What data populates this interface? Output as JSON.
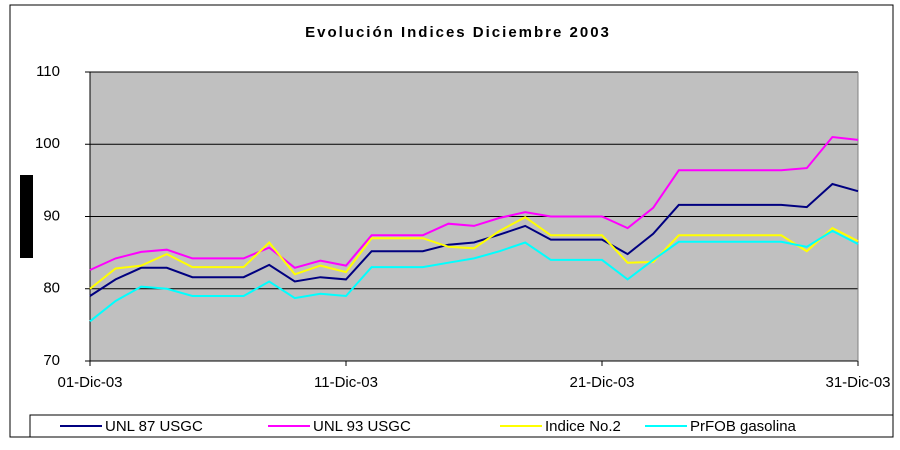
{
  "chart_data": {
    "type": "line",
    "title": "Evolución Indices Diciembre 2003",
    "categories": [
      "01-Dic-03",
      null,
      null,
      null,
      null,
      null,
      null,
      null,
      null,
      null,
      "11-Dic-03",
      null,
      null,
      null,
      null,
      null,
      null,
      null,
      null,
      null,
      "21-Dic-03",
      null,
      null,
      null,
      null,
      null,
      null,
      null,
      null,
      null,
      "31-Dic-03"
    ],
    "ylim": [
      70,
      110
    ],
    "yticks": [
      70,
      80,
      90,
      100,
      110
    ],
    "grid": true,
    "legend": "bottom",
    "series": [
      {
        "name": "UNL 87 USGC",
        "color": "#000080",
        "values": [
          79,
          81.3,
          82.9,
          82.9,
          81.6,
          81.6,
          81.6,
          83.3,
          81,
          81.6,
          81.3,
          85.2,
          85.2,
          85.2,
          86.1,
          86.4,
          87.5,
          88.7,
          86.8,
          86.8,
          86.8,
          84.8,
          87.6,
          91.6,
          91.6,
          91.6,
          91.6,
          91.6,
          91.3,
          94.5,
          93.5
        ]
      },
      {
        "name": "UNL 93 USGC",
        "color": "#ff00ff",
        "values": [
          82.6,
          84.2,
          85.1,
          85.4,
          84.2,
          84.2,
          84.2,
          85.7,
          82.9,
          83.9,
          83.2,
          87.4,
          87.4,
          87.4,
          89,
          88.7,
          89.8,
          90.6,
          90,
          90,
          90,
          88.4,
          91.2,
          96.4,
          96.4,
          96.4,
          96.4,
          96.4,
          96.7,
          101,
          100.6
        ]
      },
      {
        "name": "Indice No.2",
        "color": "#ffff00",
        "values": [
          80,
          82.8,
          83.2,
          84.8,
          83,
          83,
          83,
          86.4,
          82,
          83.2,
          82.3,
          87,
          87,
          87,
          85.8,
          85.6,
          88,
          89.9,
          87.4,
          87.4,
          87.4,
          83.6,
          83.7,
          87.4,
          87.4,
          87.4,
          87.4,
          87.4,
          85.2,
          88.4,
          86.6
        ]
      },
      {
        "name": "PrFOB gasolina",
        "color": "#00ffff",
        "values": [
          75.5,
          78.3,
          80.3,
          80,
          79,
          79,
          79,
          81,
          78.7,
          79.3,
          79,
          83,
          83,
          83,
          83.6,
          84.2,
          85.2,
          86.4,
          84,
          84,
          84,
          81.3,
          84,
          86.5,
          86.5,
          86.5,
          86.5,
          86.5,
          85.8,
          88,
          86.2
        ]
      }
    ]
  }
}
